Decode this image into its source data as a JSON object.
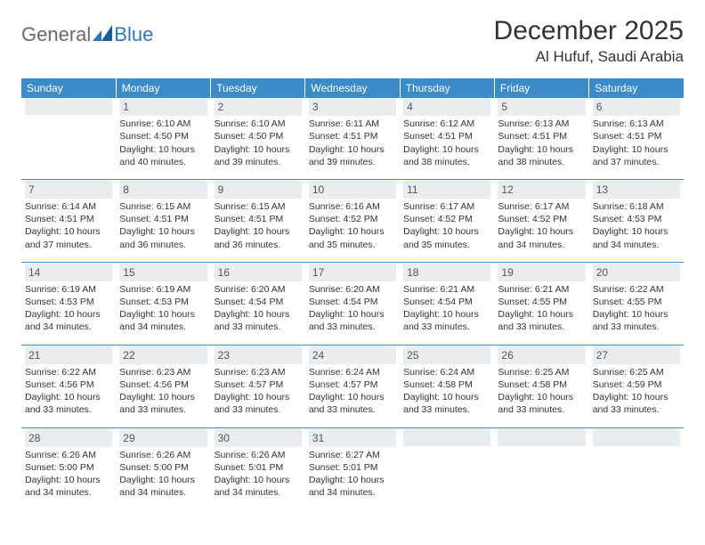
{
  "logo": {
    "general": "General",
    "blue": "Blue"
  },
  "header": {
    "month_title": "December 2025",
    "location": "Al Hufuf, Saudi Arabia"
  },
  "colors": {
    "header_bg": "#3b8bc9",
    "header_text": "#ffffff",
    "daynum_bg": "#e9edf0",
    "text": "#333333",
    "divider": "#3b8bc9"
  },
  "dow": [
    "Sunday",
    "Monday",
    "Tuesday",
    "Wednesday",
    "Thursday",
    "Friday",
    "Saturday"
  ],
  "weeks": [
    [
      null,
      {
        "n": "1",
        "sr": "Sunrise: 6:10 AM",
        "ss": "Sunset: 4:50 PM",
        "dl": "Daylight: 10 hours and 40 minutes."
      },
      {
        "n": "2",
        "sr": "Sunrise: 6:10 AM",
        "ss": "Sunset: 4:50 PM",
        "dl": "Daylight: 10 hours and 39 minutes."
      },
      {
        "n": "3",
        "sr": "Sunrise: 6:11 AM",
        "ss": "Sunset: 4:51 PM",
        "dl": "Daylight: 10 hours and 39 minutes."
      },
      {
        "n": "4",
        "sr": "Sunrise: 6:12 AM",
        "ss": "Sunset: 4:51 PM",
        "dl": "Daylight: 10 hours and 38 minutes."
      },
      {
        "n": "5",
        "sr": "Sunrise: 6:13 AM",
        "ss": "Sunset: 4:51 PM",
        "dl": "Daylight: 10 hours and 38 minutes."
      },
      {
        "n": "6",
        "sr": "Sunrise: 6:13 AM",
        "ss": "Sunset: 4:51 PM",
        "dl": "Daylight: 10 hours and 37 minutes."
      }
    ],
    [
      {
        "n": "7",
        "sr": "Sunrise: 6:14 AM",
        "ss": "Sunset: 4:51 PM",
        "dl": "Daylight: 10 hours and 37 minutes."
      },
      {
        "n": "8",
        "sr": "Sunrise: 6:15 AM",
        "ss": "Sunset: 4:51 PM",
        "dl": "Daylight: 10 hours and 36 minutes."
      },
      {
        "n": "9",
        "sr": "Sunrise: 6:15 AM",
        "ss": "Sunset: 4:51 PM",
        "dl": "Daylight: 10 hours and 36 minutes."
      },
      {
        "n": "10",
        "sr": "Sunrise: 6:16 AM",
        "ss": "Sunset: 4:52 PM",
        "dl": "Daylight: 10 hours and 35 minutes."
      },
      {
        "n": "11",
        "sr": "Sunrise: 6:17 AM",
        "ss": "Sunset: 4:52 PM",
        "dl": "Daylight: 10 hours and 35 minutes."
      },
      {
        "n": "12",
        "sr": "Sunrise: 6:17 AM",
        "ss": "Sunset: 4:52 PM",
        "dl": "Daylight: 10 hours and 34 minutes."
      },
      {
        "n": "13",
        "sr": "Sunrise: 6:18 AM",
        "ss": "Sunset: 4:53 PM",
        "dl": "Daylight: 10 hours and 34 minutes."
      }
    ],
    [
      {
        "n": "14",
        "sr": "Sunrise: 6:19 AM",
        "ss": "Sunset: 4:53 PM",
        "dl": "Daylight: 10 hours and 34 minutes."
      },
      {
        "n": "15",
        "sr": "Sunrise: 6:19 AM",
        "ss": "Sunset: 4:53 PM",
        "dl": "Daylight: 10 hours and 34 minutes."
      },
      {
        "n": "16",
        "sr": "Sunrise: 6:20 AM",
        "ss": "Sunset: 4:54 PM",
        "dl": "Daylight: 10 hours and 33 minutes."
      },
      {
        "n": "17",
        "sr": "Sunrise: 6:20 AM",
        "ss": "Sunset: 4:54 PM",
        "dl": "Daylight: 10 hours and 33 minutes."
      },
      {
        "n": "18",
        "sr": "Sunrise: 6:21 AM",
        "ss": "Sunset: 4:54 PM",
        "dl": "Daylight: 10 hours and 33 minutes."
      },
      {
        "n": "19",
        "sr": "Sunrise: 6:21 AM",
        "ss": "Sunset: 4:55 PM",
        "dl": "Daylight: 10 hours and 33 minutes."
      },
      {
        "n": "20",
        "sr": "Sunrise: 6:22 AM",
        "ss": "Sunset: 4:55 PM",
        "dl": "Daylight: 10 hours and 33 minutes."
      }
    ],
    [
      {
        "n": "21",
        "sr": "Sunrise: 6:22 AM",
        "ss": "Sunset: 4:56 PM",
        "dl": "Daylight: 10 hours and 33 minutes."
      },
      {
        "n": "22",
        "sr": "Sunrise: 6:23 AM",
        "ss": "Sunset: 4:56 PM",
        "dl": "Daylight: 10 hours and 33 minutes."
      },
      {
        "n": "23",
        "sr": "Sunrise: 6:23 AM",
        "ss": "Sunset: 4:57 PM",
        "dl": "Daylight: 10 hours and 33 minutes."
      },
      {
        "n": "24",
        "sr": "Sunrise: 6:24 AM",
        "ss": "Sunset: 4:57 PM",
        "dl": "Daylight: 10 hours and 33 minutes."
      },
      {
        "n": "25",
        "sr": "Sunrise: 6:24 AM",
        "ss": "Sunset: 4:58 PM",
        "dl": "Daylight: 10 hours and 33 minutes."
      },
      {
        "n": "26",
        "sr": "Sunrise: 6:25 AM",
        "ss": "Sunset: 4:58 PM",
        "dl": "Daylight: 10 hours and 33 minutes."
      },
      {
        "n": "27",
        "sr": "Sunrise: 6:25 AM",
        "ss": "Sunset: 4:59 PM",
        "dl": "Daylight: 10 hours and 33 minutes."
      }
    ],
    [
      {
        "n": "28",
        "sr": "Sunrise: 6:26 AM",
        "ss": "Sunset: 5:00 PM",
        "dl": "Daylight: 10 hours and 34 minutes."
      },
      {
        "n": "29",
        "sr": "Sunrise: 6:26 AM",
        "ss": "Sunset: 5:00 PM",
        "dl": "Daylight: 10 hours and 34 minutes."
      },
      {
        "n": "30",
        "sr": "Sunrise: 6:26 AM",
        "ss": "Sunset: 5:01 PM",
        "dl": "Daylight: 10 hours and 34 minutes."
      },
      {
        "n": "31",
        "sr": "Sunrise: 6:27 AM",
        "ss": "Sunset: 5:01 PM",
        "dl": "Daylight: 10 hours and 34 minutes."
      },
      null,
      null,
      null
    ]
  ]
}
